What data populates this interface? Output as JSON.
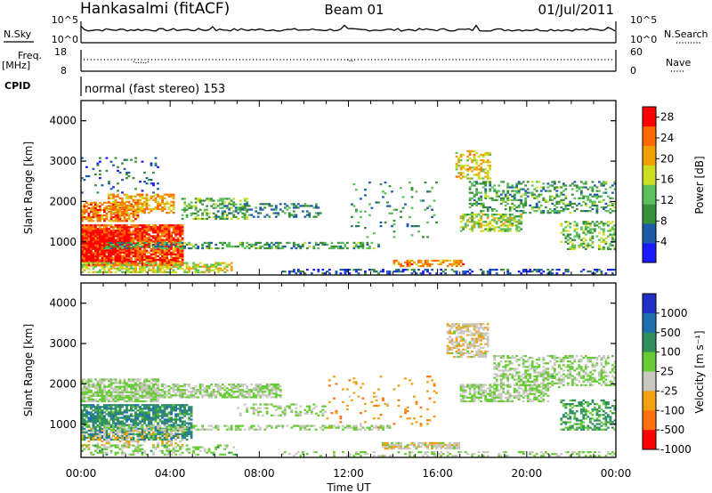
{
  "header": {
    "station": "Hankasalmi (fitACF)",
    "beam": "Beam 01",
    "date": "01/Jul/2011",
    "cpid_label": "CPID",
    "cpid_text": "normal (fast stereo) 153"
  },
  "noise_panel": {
    "left_label": "N.Sky",
    "right_label": "N.Search",
    "left_ticks": [
      "10^5",
      "10^0"
    ],
    "right_ticks": [
      "10^5",
      "10^0"
    ]
  },
  "freq_panel": {
    "left_label_line1": "Freq.",
    "left_label_line2": "[MHz]",
    "right_label": "Nave",
    "left_ticks": [
      "18",
      "8"
    ],
    "right_ticks": [
      "60",
      "0"
    ]
  },
  "time_axis": {
    "label": "Time UT",
    "ticks": [
      "00:00",
      "04:00",
      "08:00",
      "12:00",
      "16:00",
      "20:00",
      "00:00"
    ],
    "range_hours": [
      0,
      24
    ]
  },
  "colors": {
    "power": [
      "#1a1aff",
      "#1d5aa8",
      "#3a8f3a",
      "#5bbf5b",
      "#ccdd22",
      "#f0a000",
      "#ff6a00",
      "#ff0000"
    ],
    "velocity": [
      "#2030c8",
      "#1f6fb0",
      "#2f8f5f",
      "#66cc33",
      "#c8c8c0",
      "#f0a010",
      "#ff7010",
      "#ff0000"
    ]
  },
  "chart_data": [
    {
      "type": "heatmap",
      "name": "power",
      "ylabel": "Slant Range [km]",
      "ylim": [
        180,
        4500
      ],
      "yticks": [
        1000,
        2000,
        3000,
        4000
      ],
      "xlabel": "",
      "colorbar_label": "Power [dB]",
      "colorbar_ticks": [
        "4",
        "8",
        "12",
        "16",
        "20",
        "24",
        "28"
      ],
      "colorbar_range": [
        0,
        30
      ],
      "regions": [
        {
          "t": [
            0.0,
            4.6
          ],
          "r": [
            400,
            1450
          ],
          "v": 26,
          "d": 0.85
        },
        {
          "t": [
            0.0,
            2.2
          ],
          "r": [
            400,
            1300
          ],
          "v": 29,
          "d": 0.8
        },
        {
          "t": [
            0.0,
            2.6
          ],
          "r": [
            1500,
            2000
          ],
          "v": 23,
          "d": 0.7
        },
        {
          "t": [
            1.2,
            4.2
          ],
          "r": [
            1700,
            2200
          ],
          "v": 21,
          "d": 0.55
        },
        {
          "t": [
            0.0,
            6.8
          ],
          "r": [
            230,
            480
          ],
          "v": 17,
          "d": 0.6
        },
        {
          "t": [
            1.0,
            13.5
          ],
          "r": [
            820,
            980
          ],
          "v": 11,
          "d": 0.45
        },
        {
          "t": [
            4.5,
            7.5
          ],
          "r": [
            1550,
            2100
          ],
          "v": 13,
          "d": 0.4
        },
        {
          "t": [
            6.0,
            10.8
          ],
          "r": [
            1600,
            1950
          ],
          "v": 9,
          "d": 0.35
        },
        {
          "t": [
            0.0,
            3.5
          ],
          "r": [
            2200,
            3100
          ],
          "v": 6,
          "d": 0.12
        },
        {
          "t": [
            9.0,
            24.0
          ],
          "r": [
            200,
            320
          ],
          "v": 5,
          "d": 0.35
        },
        {
          "t": [
            14.0,
            17.2
          ],
          "r": [
            380,
            560
          ],
          "v": 22,
          "d": 0.6
        },
        {
          "t": [
            16.8,
            18.4
          ],
          "r": [
            2550,
            3250
          ],
          "v": 18,
          "d": 0.45
        },
        {
          "t": [
            17.0,
            19.8
          ],
          "r": [
            1250,
            1700
          ],
          "v": 15,
          "d": 0.5
        },
        {
          "t": [
            17.4,
            24.0
          ],
          "r": [
            1700,
            2500
          ],
          "v": 11,
          "d": 0.35
        },
        {
          "t": [
            21.5,
            24.0
          ],
          "r": [
            800,
            1500
          ],
          "v": 13,
          "d": 0.4
        },
        {
          "t": [
            12.0,
            16.0
          ],
          "r": [
            1100,
            2500
          ],
          "v": 10,
          "d": 0.08
        }
      ]
    },
    {
      "type": "heatmap",
      "name": "velocity",
      "ylabel": "Slant Range [km]",
      "ylim": [
        180,
        4500
      ],
      "yticks": [
        1000,
        2000,
        3000,
        4000
      ],
      "xlabel": "Time UT",
      "colorbar_label": "Velocity [m s⁻¹]",
      "colorbar_ticks": [
        "1000",
        "500",
        "100",
        "25",
        "-25",
        "-100",
        "-500",
        "-1000"
      ],
      "colorbar_range": [
        -1000,
        1000
      ],
      "regions": [
        {
          "t": [
            0.0,
            5.0
          ],
          "r": [
            600,
            1500
          ],
          "v": 400,
          "d": 0.75
        },
        {
          "t": [
            0.0,
            4.6
          ],
          "r": [
            420,
            900
          ],
          "v": -200,
          "d": 0.35
        },
        {
          "t": [
            0.0,
            3.5
          ],
          "r": [
            1550,
            2150
          ],
          "v": 0,
          "d": 0.75
        },
        {
          "t": [
            3.0,
            9.0
          ],
          "r": [
            1650,
            2000
          ],
          "v": 0,
          "d": 0.7
        },
        {
          "t": [
            0.0,
            7.0
          ],
          "r": [
            230,
            480
          ],
          "v": 80,
          "d": 0.4
        },
        {
          "t": [
            1.0,
            14.0
          ],
          "r": [
            850,
            1000
          ],
          "v": 0,
          "d": 0.5
        },
        {
          "t": [
            7.0,
            11.0
          ],
          "r": [
            1200,
            1500
          ],
          "v": 0,
          "d": 0.35
        },
        {
          "t": [
            13.5,
            17.0
          ],
          "r": [
            380,
            560
          ],
          "v": -150,
          "d": 0.7
        },
        {
          "t": [
            16.4,
            18.3
          ],
          "r": [
            2650,
            3500
          ],
          "v": -180,
          "d": 0.6
        },
        {
          "t": [
            17.0,
            21.0
          ],
          "r": [
            1550,
            2000
          ],
          "v": 0,
          "d": 0.6
        },
        {
          "t": [
            18.5,
            24.0
          ],
          "r": [
            1950,
            2700
          ],
          "v": 0,
          "d": 0.45
        },
        {
          "t": [
            21.5,
            24.0
          ],
          "r": [
            850,
            1600
          ],
          "v": 300,
          "d": 0.5
        },
        {
          "t": [
            19.5,
            21.5
          ],
          "r": [
            1900,
            2300
          ],
          "v": 60,
          "d": 0.3
        },
        {
          "t": [
            11.0,
            16.0
          ],
          "r": [
            900,
            2200
          ],
          "v": -400,
          "d": 0.07
        },
        {
          "t": [
            9.0,
            24.0
          ],
          "r": [
            200,
            320
          ],
          "v": 0,
          "d": 0.3
        }
      ]
    }
  ]
}
